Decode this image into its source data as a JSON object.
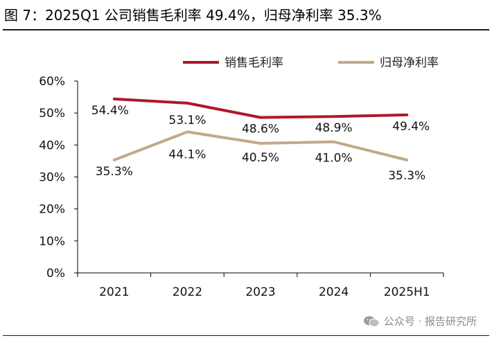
{
  "caption": {
    "text": "图 7：2025Q1 公司销售毛利率 49.4%，归母净利率 35.3%"
  },
  "watermark": {
    "text": "公众号 · 报告研究所",
    "icon": "wechat-icon"
  },
  "colors": {
    "gross_margin": "#b0182a",
    "net_margin": "#c4a889",
    "axis": "#000000"
  },
  "chart_data": {
    "type": "line",
    "title": "",
    "xlabel": "",
    "ylabel": "",
    "categories": [
      "2021",
      "2022",
      "2023",
      "2024",
      "2025H1"
    ],
    "ylim": [
      0,
      60
    ],
    "yticks": [
      "0%",
      "10%",
      "20%",
      "30%",
      "40%",
      "50%",
      "60%"
    ],
    "grid": false,
    "legend_position": "top",
    "series": [
      {
        "name": "销售毛利率",
        "values": [
          54.4,
          53.1,
          48.6,
          48.9,
          49.4
        ],
        "labels": [
          "54.4%",
          "53.1%",
          "48.6%",
          "48.9%",
          "49.4%"
        ]
      },
      {
        "name": "归母净利率",
        "values": [
          35.3,
          44.1,
          40.5,
          41.0,
          35.3
        ],
        "labels": [
          "35.3%",
          "44.1%",
          "40.5%",
          "41.0%",
          "35.3%"
        ]
      }
    ]
  }
}
